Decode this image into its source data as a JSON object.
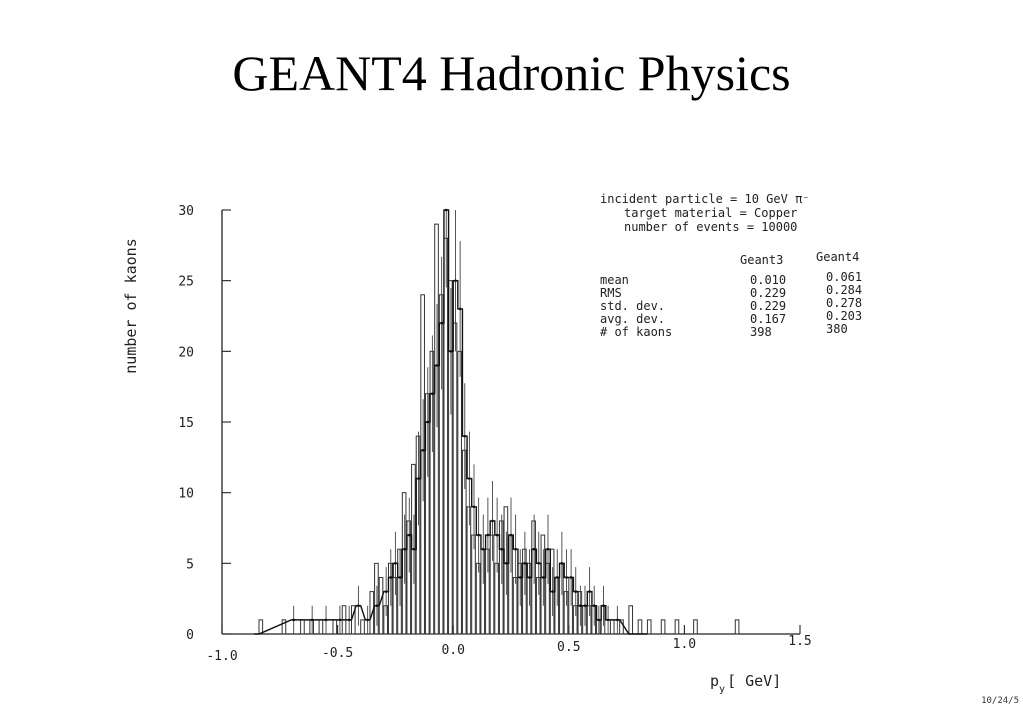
{
  "slide": {
    "title": "GEANT4 Hadronic Physics",
    "footer_date": "10/24/5"
  },
  "chart_data": {
    "type": "bar",
    "subtype": "step-histogram-with-error-bars",
    "ylabel": "number of kaons",
    "xlabel_main": "p",
    "xlabel_sub": "y",
    "xlabel_unit": "[ GeV]",
    "xlim": [
      -1.0,
      1.5
    ],
    "ylim": [
      0,
      30
    ],
    "x_ticks": [
      -1.0,
      -0.5,
      0.0,
      0.5,
      1.0,
      1.5
    ],
    "x_tick_labels": [
      "-1.0",
      "-0.5",
      "0.0",
      "0.5",
      "1.0",
      "1.5"
    ],
    "y_ticks": [
      0,
      5,
      10,
      15,
      20,
      25,
      30
    ],
    "y_tick_labels": [
      "0",
      "5",
      "10",
      "15",
      "20",
      "25",
      "30"
    ],
    "bin_width": 0.02,
    "info": {
      "line1": "incident particle = 10 GeV π⁻",
      "line2": "target material = Copper",
      "line3": "number of events = 10000"
    },
    "stats_table": {
      "columns": [
        "Geant3",
        "Geant4"
      ],
      "rows": [
        {
          "label": "mean",
          "geant3": "0.010",
          "geant4": "0.061"
        },
        {
          "label": "RMS",
          "geant3": "0.229",
          "geant4": "0.284"
        },
        {
          "label": "std. dev.",
          "geant3": "0.229",
          "geant4": "0.278"
        },
        {
          "label": "avg. dev.",
          "geant3": "0.167",
          "geant4": "0.203"
        },
        {
          "label": "# of kaons",
          "geant3": "398",
          "geant4": "380"
        }
      ]
    },
    "series": [
      {
        "name": "Geant3",
        "style": "hollow-bars",
        "x": [
          -0.84,
          -0.74,
          -0.66,
          -0.62,
          -0.58,
          -0.52,
          -0.48,
          -0.44,
          -0.4,
          -0.36,
          -0.34,
          -0.32,
          -0.3,
          -0.28,
          -0.26,
          -0.24,
          -0.22,
          -0.2,
          -0.18,
          -0.16,
          -0.14,
          -0.12,
          -0.1,
          -0.08,
          -0.06,
          -0.04,
          -0.02,
          0.0,
          0.02,
          0.04,
          0.06,
          0.08,
          0.1,
          0.12,
          0.14,
          0.16,
          0.18,
          0.2,
          0.22,
          0.24,
          0.26,
          0.28,
          0.3,
          0.32,
          0.34,
          0.36,
          0.38,
          0.4,
          0.42,
          0.44,
          0.46,
          0.48,
          0.5,
          0.52,
          0.54,
          0.56,
          0.58,
          0.6,
          0.62,
          0.64,
          0.68,
          0.72,
          0.76,
          0.8,
          0.84,
          0.9,
          0.96,
          1.04,
          1.22
        ],
        "values": [
          1,
          1,
          1,
          1,
          1,
          1,
          2,
          2,
          1,
          3,
          5,
          4,
          2,
          5,
          4,
          6,
          10,
          8,
          12,
          14,
          24,
          17,
          20,
          29,
          24,
          28,
          25,
          22,
          20,
          13,
          9,
          7,
          5,
          6,
          6,
          7,
          5,
          8,
          9,
          7,
          4,
          5,
          6,
          5,
          8,
          4,
          7,
          5,
          6,
          4,
          5,
          3,
          4,
          2,
          3,
          2,
          2,
          2,
          1,
          2,
          1,
          1,
          2,
          1,
          1,
          1,
          1,
          1,
          1
        ]
      },
      {
        "name": "Geant4",
        "style": "step-line-with-error-bars",
        "x": [
          -0.86,
          -0.7,
          -0.62,
          -0.56,
          -0.5,
          -0.46,
          -0.42,
          -0.38,
          -0.34,
          -0.3,
          -0.28,
          -0.26,
          -0.24,
          -0.22,
          -0.2,
          -0.18,
          -0.16,
          -0.14,
          -0.12,
          -0.1,
          -0.08,
          -0.06,
          -0.04,
          -0.02,
          0.0,
          0.02,
          0.04,
          0.06,
          0.08,
          0.1,
          0.12,
          0.14,
          0.16,
          0.18,
          0.2,
          0.22,
          0.24,
          0.26,
          0.28,
          0.3,
          0.32,
          0.34,
          0.36,
          0.38,
          0.4,
          0.42,
          0.44,
          0.46,
          0.48,
          0.5,
          0.52,
          0.54,
          0.56,
          0.58,
          0.6,
          0.62,
          0.64,
          0.66,
          0.7,
          0.76,
          0.82
        ],
        "values": [
          0,
          1,
          1,
          1,
          1,
          1,
          2,
          1,
          2,
          3,
          4,
          5,
          4,
          6,
          7,
          6,
          11,
          13,
          15,
          17,
          19,
          22,
          30,
          20,
          25,
          23,
          14,
          11,
          9,
          7,
          6,
          7,
          8,
          7,
          6,
          5,
          7,
          6,
          4,
          5,
          4,
          6,
          5,
          4,
          6,
          3,
          4,
          5,
          4,
          4,
          3,
          2,
          2,
          3,
          2,
          1,
          2,
          1,
          1,
          0,
          0
        ]
      }
    ]
  }
}
